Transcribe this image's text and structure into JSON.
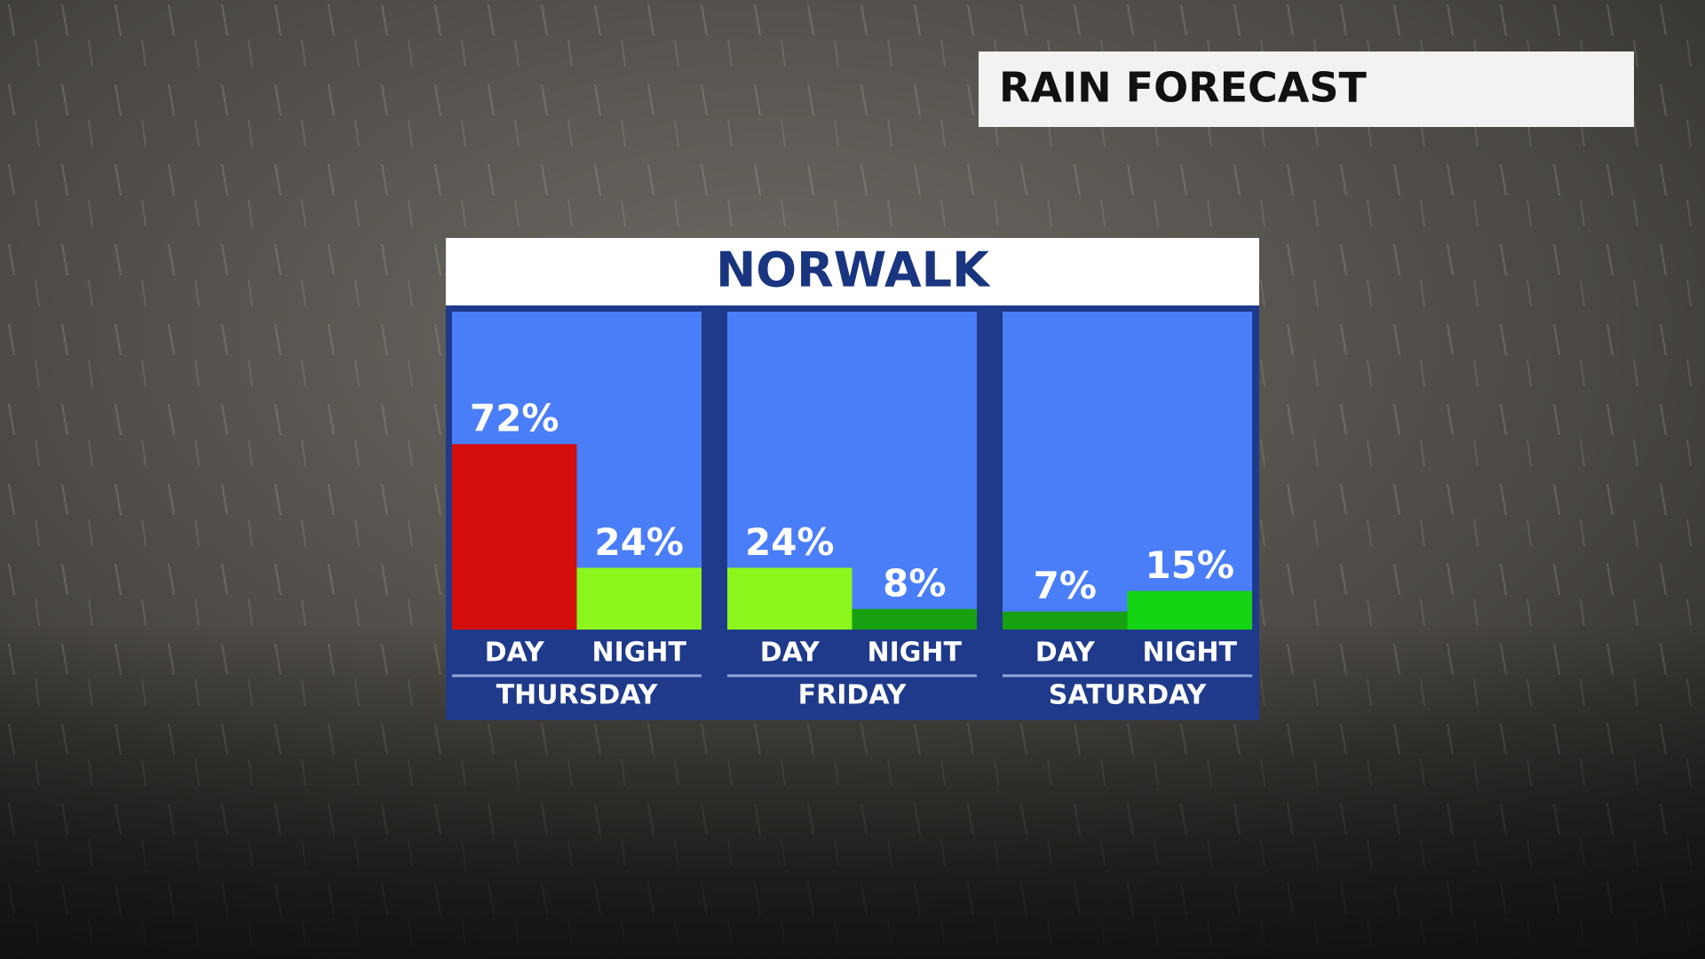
{
  "header": {
    "title": "RAIN FORECAST"
  },
  "chart_data": {
    "type": "bar",
    "title": "NORWALK",
    "groups": [
      {
        "name": "THURSDAY",
        "categories": [
          "DAY",
          "NIGHT"
        ],
        "values": [
          72,
          24
        ],
        "value_labels": [
          "72%",
          "24%"
        ],
        "colors": [
          "#d40d0d",
          "#8cf51c"
        ]
      },
      {
        "name": "FRIDAY",
        "categories": [
          "DAY",
          "NIGHT"
        ],
        "values": [
          24,
          8
        ],
        "value_labels": [
          "24%",
          "8%"
        ],
        "colors": [
          "#8cf51c",
          "#17a110"
        ]
      },
      {
        "name": "SATURDAY",
        "categories": [
          "DAY",
          "NIGHT"
        ],
        "values": [
          7,
          15
        ],
        "value_labels": [
          "7%",
          "15%"
        ],
        "colors": [
          "#17a110",
          "#14d414"
        ]
      }
    ]
  }
}
